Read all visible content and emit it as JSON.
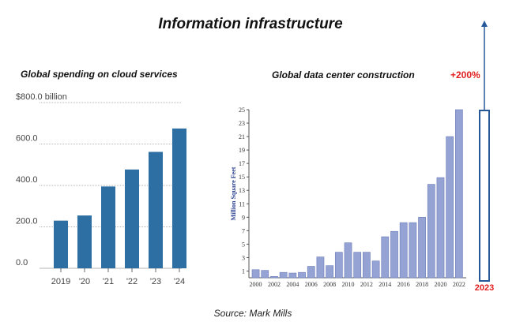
{
  "title": "Information infrastructure",
  "source": "Source: Mark Mills",
  "annotation": {
    "label": "+200%",
    "year": "2023"
  },
  "colors": {
    "left_bar": "#2e6fa3",
    "right_bar": "#95a3d4",
    "arrow": "#27589a",
    "annotation": "#e02020"
  },
  "chart_data": [
    {
      "type": "bar",
      "title": "Global spending on cloud services",
      "categories": [
        "2019",
        "'20",
        "'21",
        "'22",
        "'23",
        "'24"
      ],
      "values": [
        230,
        255,
        395,
        477,
        562,
        675
      ],
      "yticks": [
        "$800.0 billion",
        "600.0",
        "400.0",
        "200.0",
        "0.0"
      ],
      "ylim": [
        0,
        800
      ],
      "grid": true
    },
    {
      "type": "bar",
      "title": "Global data center construction",
      "ylabel": "Million Square Feet",
      "x": [
        2000,
        2001,
        2002,
        2003,
        2004,
        2005,
        2006,
        2007,
        2008,
        2009,
        2010,
        2011,
        2012,
        2013,
        2014,
        2015,
        2016,
        2017,
        2018,
        2019,
        2020,
        2021,
        2022
      ],
      "xtick_labels": [
        "2000",
        "2002",
        "2004",
        "2006",
        "2008",
        "2010",
        "2012",
        "2014",
        "2016",
        "2018",
        "2020",
        "2022"
      ],
      "values": [
        1.2,
        1.1,
        0.2,
        0.8,
        0.7,
        0.8,
        1.7,
        3.1,
        1.8,
        3.8,
        5.2,
        3.8,
        3.8,
        2.5,
        6.1,
        6.9,
        8.2,
        8.2,
        9.0,
        13.9,
        14.9,
        21.0,
        25.0
      ],
      "yticks": [
        1,
        3,
        5,
        7,
        9,
        11,
        13,
        15,
        17,
        19,
        21,
        23,
        25
      ],
      "ylim": [
        0,
        25
      ]
    }
  ]
}
